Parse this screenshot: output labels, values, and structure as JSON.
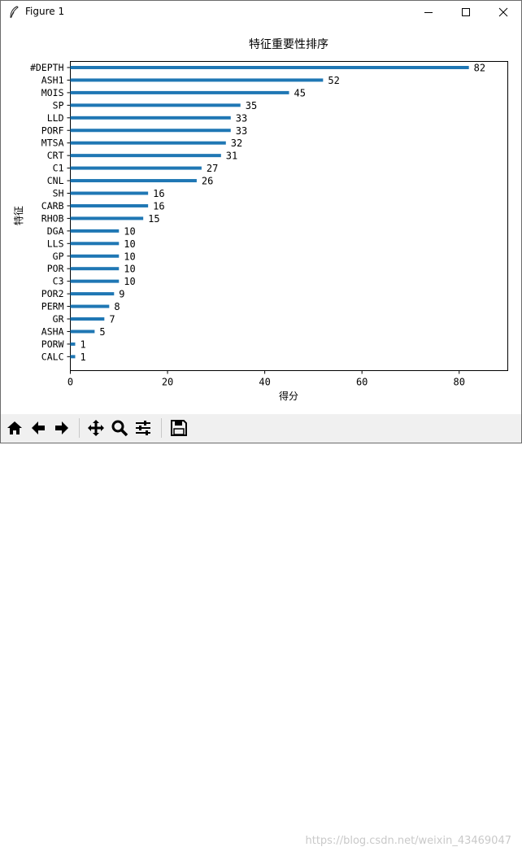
{
  "window": {
    "title": "Figure 1",
    "minimize_icon": "minimize-icon",
    "maximize_icon": "maximize-icon",
    "close_icon": "close-icon"
  },
  "toolbar": {
    "buttons": [
      "home-icon",
      "back-arrow-icon",
      "forward-arrow-icon",
      "pan-move-icon",
      "zoom-magnifier-icon",
      "subplots-sliders-icon",
      "save-floppy-icon"
    ]
  },
  "watermark": "https://blog.csdn.net/weixin_43469047",
  "chart_data": {
    "type": "bar",
    "orientation": "horizontal",
    "title": "特征重要性排序",
    "xlabel": "得分",
    "ylabel": "特征",
    "xlim": [
      0,
      90
    ],
    "xticks": [
      0,
      20,
      40,
      60,
      80
    ],
    "grid": false,
    "bar_color": "#1f77b4",
    "categories": [
      "#DEPTH",
      "ASH1",
      "MOIS",
      "SP",
      "LLD",
      "PORF",
      "MTSA",
      "CRT",
      "C1",
      "CNL",
      "SH",
      "CARB",
      "RHOB",
      "DGA",
      "LLS",
      "GP",
      "POR",
      "C3",
      "POR2",
      "PERM",
      "GR",
      "ASHA",
      "PORW",
      "CALC"
    ],
    "values": [
      82,
      52,
      45,
      35,
      33,
      33,
      32,
      31,
      27,
      26,
      16,
      16,
      15,
      10,
      10,
      10,
      10,
      10,
      9,
      8,
      7,
      5,
      1,
      1
    ],
    "data_labels": [
      "82",
      "52",
      "45",
      "35",
      "33",
      "33",
      "32",
      "31",
      "27",
      "26",
      "16",
      "16",
      "15",
      "10",
      "10",
      "10",
      "10",
      "10",
      "9",
      "8",
      "7",
      "5",
      "1",
      "1"
    ]
  }
}
